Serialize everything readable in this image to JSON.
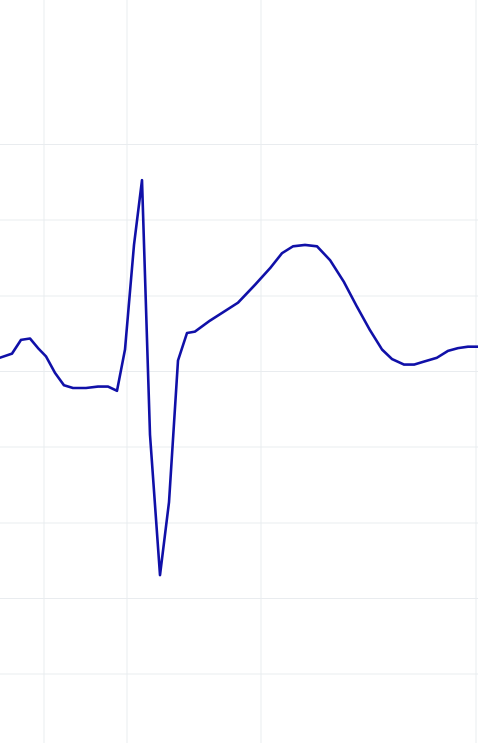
{
  "chart_data": {
    "type": "line",
    "title": "",
    "xlabel": "",
    "ylabel": "",
    "grid": true,
    "xlim": [
      0,
      478
    ],
    "ylim": [
      -2.7,
      2.7
    ],
    "x_gridlines": [
      44,
      127,
      261,
      476
    ],
    "y_gridlines": [
      1.65,
      1.1,
      0.55,
      0,
      -0.55,
      -1.1,
      -1.65,
      -2.2
    ],
    "series": [
      {
        "color": "#1010a8",
        "points": [
          [
            0,
            0.1
          ],
          [
            12,
            0.13
          ],
          [
            21,
            0.23
          ],
          [
            30,
            0.24
          ],
          [
            38,
            0.17
          ],
          [
            46,
            0.11
          ],
          [
            55,
            -0.01
          ],
          [
            64,
            -0.1
          ],
          [
            73,
            -0.12
          ],
          [
            86,
            -0.12
          ],
          [
            98,
            -0.11
          ],
          [
            108,
            -0.11
          ],
          [
            117,
            -0.14
          ],
          [
            125,
            0.16
          ],
          [
            134,
            0.92
          ],
          [
            142,
            1.39
          ],
          [
            150,
            -0.46
          ],
          [
            160,
            -1.48
          ],
          [
            169,
            -0.95
          ],
          [
            178,
            0.08
          ],
          [
            187,
            0.28
          ],
          [
            195,
            0.29
          ],
          [
            210,
            0.37
          ],
          [
            238,
            0.5
          ],
          [
            255,
            0.63
          ],
          [
            270,
            0.75
          ],
          [
            282,
            0.86
          ],
          [
            293,
            0.91
          ],
          [
            305,
            0.92
          ],
          [
            317,
            0.91
          ],
          [
            330,
            0.81
          ],
          [
            344,
            0.65
          ],
          [
            357,
            0.47
          ],
          [
            370,
            0.3
          ],
          [
            382,
            0.16
          ],
          [
            392,
            0.09
          ],
          [
            404,
            0.05
          ],
          [
            414,
            0.05
          ],
          [
            423,
            0.07
          ],
          [
            437,
            0.1
          ],
          [
            448,
            0.15
          ],
          [
            458,
            0.17
          ],
          [
            468,
            0.18
          ],
          [
            478,
            0.18
          ]
        ]
      }
    ]
  }
}
